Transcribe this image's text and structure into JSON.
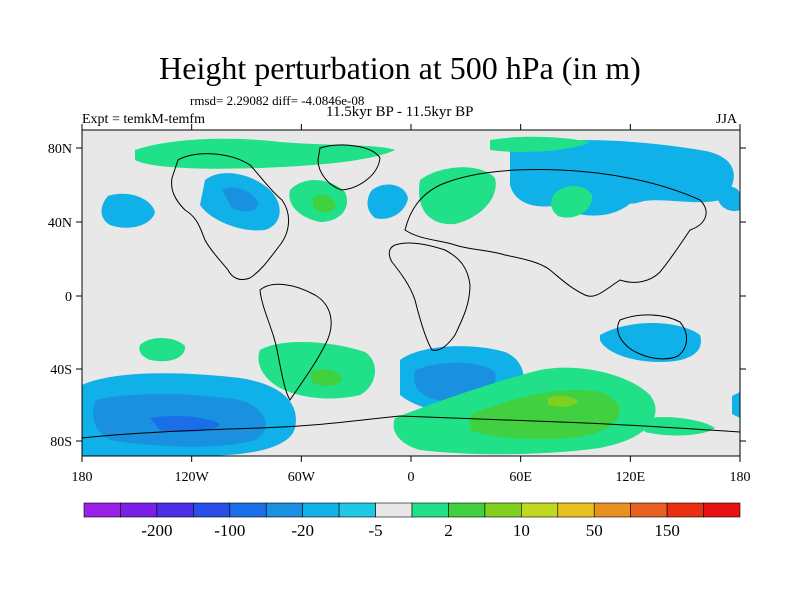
{
  "title": "Height perturbation at 500 hPa (in m)",
  "stats": {
    "rmsd_line": "rmsd= 2.29082 diff= -4.0846e-08",
    "experiment": "Expt = temkM-temfm",
    "period": "11.5kyr BP - 11.5kyr BP",
    "season": "JJA"
  },
  "map": {
    "lat_ticks": [
      "80N",
      "40N",
      "0",
      "40S",
      "80S"
    ],
    "lon_ticks": [
      "180",
      "120W",
      "60W",
      "0",
      "60E",
      "120E",
      "180"
    ],
    "background_color": "#e8e8e8"
  },
  "colorbar": {
    "labels": [
      "-200",
      "-100",
      "-20",
      "-5",
      "2",
      "10",
      "50",
      "150"
    ],
    "colors": [
      "#9b20e8",
      "#7a20e8",
      "#4a2ee8",
      "#2a4ee8",
      "#1a6ee8",
      "#1a90e0",
      "#10b0e8",
      "#20c8e8",
      "#e8e8e8",
      "#20e088",
      "#40d040",
      "#80d020",
      "#c0d820",
      "#e8c020",
      "#e89020",
      "#e86020",
      "#e83010",
      "#e81010"
    ]
  }
}
